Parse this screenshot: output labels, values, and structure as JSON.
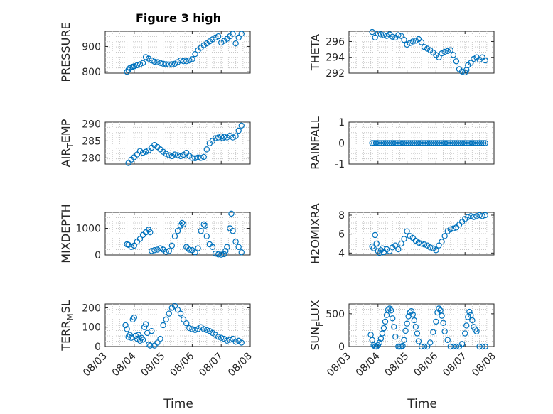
{
  "figure": {
    "title": "Figure 3 high",
    "marker_color": "#0072bd"
  },
  "chart_data": [
    {
      "type": "scatter",
      "ylabel": "PRESSURE",
      "ylim": [
        795,
        960
      ],
      "yticks": [
        800,
        900
      ],
      "title": "Figure 3 high",
      "grid": true,
      "xlim": [
        0,
        5
      ],
      "x_tick_labels": [
        "08/03",
        "08/04",
        "08/05",
        "08/06",
        "08/07",
        "08/08"
      ],
      "x_tick_labels_shown": false,
      "series": [
        {
          "x": [
            0.75,
            0.8,
            0.85,
            0.9,
            0.95,
            1.0,
            1.1,
            1.2,
            1.3,
            1.4,
            1.5,
            1.6,
            1.7,
            1.8,
            1.9,
            2.0,
            2.1,
            2.2,
            2.3,
            2.4,
            2.5,
            2.6,
            2.7,
            2.8,
            2.9,
            3.0,
            3.1,
            3.2,
            3.3,
            3.4,
            3.5,
            3.6,
            3.7,
            3.8,
            3.9,
            4.0,
            4.1,
            4.2,
            4.3,
            4.4,
            4.5,
            4.6,
            4.7
          ],
          "y": [
            800,
            808,
            815,
            818,
            820,
            822,
            826,
            830,
            835,
            858,
            852,
            845,
            840,
            838,
            835,
            832,
            830,
            829,
            830,
            832,
            838,
            845,
            842,
            842,
            845,
            850,
            870,
            885,
            895,
            905,
            912,
            920,
            928,
            935,
            940,
            915,
            922,
            930,
            940,
            950,
            912,
            935,
            950
          ]
        }
      ]
    },
    {
      "type": "scatter",
      "ylabel": "THETA",
      "ylim": [
        292,
        297.3
      ],
      "yticks": [
        292,
        294,
        296
      ],
      "grid": true,
      "xlim": [
        0,
        5
      ],
      "x_tick_labels_shown": false,
      "series": [
        {
          "x": [
            0.8,
            0.9,
            1.0,
            1.1,
            1.2,
            1.3,
            1.4,
            1.5,
            1.6,
            1.7,
            1.8,
            1.9,
            2.0,
            2.1,
            2.2,
            2.3,
            2.4,
            2.5,
            2.6,
            2.7,
            2.8,
            2.9,
            3.0,
            3.1,
            3.2,
            3.3,
            3.4,
            3.5,
            3.6,
            3.7,
            3.8,
            3.9,
            4.0,
            4.05,
            4.1,
            4.2,
            4.3,
            4.4,
            4.5,
            4.6,
            4.7
          ],
          "y": [
            297.2,
            296.5,
            297.0,
            296.9,
            296.8,
            296.7,
            296.9,
            296.6,
            296.5,
            296.8,
            296.7,
            296.2,
            295.6,
            295.8,
            296.0,
            296.1,
            296.3,
            295.9,
            295.3,
            295.1,
            294.9,
            294.6,
            294.3,
            294.0,
            294.5,
            294.7,
            294.8,
            294.9,
            294.3,
            293.5,
            292.5,
            292.2,
            292.1,
            292.4,
            293.0,
            293.3,
            293.8,
            294.0,
            293.7,
            294.0,
            293.6
          ]
        }
      ]
    },
    {
      "type": "scatter",
      "ylabel": "AIR_TEMP",
      "ylim": [
        278.2,
        290.5
      ],
      "yticks": [
        280,
        285,
        290
      ],
      "grid": true,
      "xlim": [
        0,
        5
      ],
      "x_tick_labels_shown": false,
      "series": [
        {
          "x": [
            0.8,
            0.9,
            1.0,
            1.1,
            1.2,
            1.3,
            1.4,
            1.5,
            1.6,
            1.7,
            1.8,
            1.9,
            2.0,
            2.1,
            2.2,
            2.3,
            2.4,
            2.5,
            2.6,
            2.7,
            2.8,
            2.9,
            3.0,
            3.1,
            3.2,
            3.3,
            3.4,
            3.5,
            3.6,
            3.7,
            3.8,
            3.9,
            4.0,
            4.05,
            4.1,
            4.2,
            4.3,
            4.4,
            4.5,
            4.6,
            4.7
          ],
          "y": [
            278.5,
            279.5,
            280.2,
            281.0,
            282.0,
            281.5,
            281.8,
            282.2,
            283.0,
            283.8,
            283.2,
            282.5,
            281.8,
            281.2,
            280.8,
            280.5,
            281.0,
            280.8,
            280.5,
            280.9,
            281.5,
            280.6,
            280.0,
            279.9,
            280.1,
            280.0,
            280.3,
            282.5,
            284.3,
            285.0,
            285.8,
            286.0,
            286.3,
            285.8,
            286.2,
            286.0,
            286.5,
            286.0,
            286.4,
            288.0,
            289.5
          ]
        }
      ]
    },
    {
      "type": "scatter",
      "ylabel": "RAINFALL",
      "ylim": [
        -1,
        1
      ],
      "yticks": [
        -1,
        0,
        1
      ],
      "grid": true,
      "xlim": [
        0,
        5
      ],
      "x_tick_labels_shown": false,
      "series": [
        {
          "x_range": [
            0.8,
            4.7
          ],
          "y_constant": 0,
          "n": 60
        }
      ]
    },
    {
      "type": "scatter",
      "ylabel": "MIXDEPTH",
      "ylim": [
        0,
        1600
      ],
      "yticks": [
        0,
        1000
      ],
      "grid": true,
      "xlim": [
        0,
        5
      ],
      "x_tick_labels_shown": false,
      "series": [
        {
          "x": [
            0.75,
            0.8,
            0.9,
            1.0,
            1.1,
            1.2,
            1.3,
            1.4,
            1.5,
            1.55,
            1.6,
            1.7,
            1.8,
            1.9,
            2.0,
            2.1,
            2.2,
            2.3,
            2.4,
            2.5,
            2.6,
            2.65,
            2.7,
            2.8,
            2.85,
            2.9,
            3.0,
            3.1,
            3.2,
            3.3,
            3.4,
            3.45,
            3.5,
            3.6,
            3.7,
            3.8,
            3.9,
            4.0,
            4.1,
            4.15,
            4.2,
            4.3,
            4.35,
            4.4,
            4.5,
            4.6,
            4.7
          ],
          "y": [
            400,
            380,
            300,
            350,
            500,
            600,
            750,
            850,
            950,
            850,
            150,
            180,
            200,
            250,
            200,
            120,
            150,
            350,
            700,
            900,
            1100,
            1200,
            1150,
            300,
            250,
            200,
            180,
            100,
            250,
            900,
            1150,
            1100,
            700,
            400,
            300,
            50,
            20,
            10,
            30,
            150,
            300,
            1000,
            1550,
            900,
            500,
            300,
            100
          ]
        }
      ]
    },
    {
      "type": "scatter",
      "ylabel": "H2OMIXRA",
      "ylim": [
        3.8,
        8.3
      ],
      "yticks": [
        4,
        6,
        8
      ],
      "grid": true,
      "xlim": [
        0,
        5
      ],
      "x_tick_labels_shown": false,
      "series": [
        {
          "x": [
            0.8,
            0.85,
            0.9,
            0.95,
            1.0,
            1.05,
            1.1,
            1.15,
            1.2,
            1.3,
            1.4,
            1.5,
            1.6,
            1.7,
            1.8,
            1.9,
            2.0,
            2.1,
            2.2,
            2.3,
            2.4,
            2.5,
            2.6,
            2.7,
            2.8,
            2.9,
            3.0,
            3.1,
            3.2,
            3.3,
            3.4,
            3.5,
            3.6,
            3.7,
            3.8,
            3.9,
            4.0,
            4.1,
            4.2,
            4.3,
            4.4,
            4.5,
            4.6,
            4.7
          ],
          "y": [
            4.7,
            4.5,
            5.9,
            5.0,
            4.2,
            4.0,
            4.3,
            4.5,
            4.1,
            4.4,
            4.2,
            4.6,
            4.8,
            4.4,
            5.0,
            5.5,
            6.3,
            5.8,
            5.6,
            5.3,
            5.1,
            5.0,
            4.9,
            4.8,
            4.6,
            4.5,
            4.3,
            4.8,
            5.2,
            5.8,
            6.3,
            6.5,
            6.6,
            6.7,
            7.0,
            7.3,
            7.6,
            7.8,
            7.9,
            7.8,
            7.9,
            8.0,
            7.9,
            8.0
          ]
        }
      ]
    },
    {
      "type": "scatter",
      "ylabel": "TERR_MSL",
      "ylim": [
        0,
        220
      ],
      "yticks": [
        0,
        100,
        200
      ],
      "grid": true,
      "xlim": [
        0,
        5
      ],
      "x_tick_labels_shown": true,
      "series": [
        {
          "x": [
            0.7,
            0.75,
            0.8,
            0.85,
            0.9,
            0.95,
            1.0,
            1.05,
            1.1,
            1.15,
            1.2,
            1.25,
            1.3,
            1.35,
            1.4,
            1.45,
            1.5,
            1.55,
            1.6,
            1.7,
            1.8,
            1.9,
            2.0,
            2.1,
            2.2,
            2.3,
            2.4,
            2.5,
            2.6,
            2.7,
            2.8,
            2.9,
            3.0,
            3.1,
            3.2,
            3.3,
            3.4,
            3.5,
            3.6,
            3.7,
            3.8,
            3.9,
            4.0,
            4.1,
            4.2,
            4.3,
            4.4,
            4.5,
            4.6,
            4.7
          ],
          "y": [
            110,
            90,
            50,
            60,
            45,
            140,
            150,
            55,
            40,
            60,
            30,
            45,
            35,
            100,
            115,
            70,
            10,
            5,
            80,
            5,
            20,
            40,
            110,
            140,
            170,
            200,
            210,
            190,
            170,
            140,
            120,
            95,
            90,
            85,
            90,
            100,
            90,
            85,
            80,
            70,
            60,
            50,
            45,
            40,
            30,
            35,
            40,
            25,
            30,
            20
          ]
        }
      ]
    },
    {
      "type": "scatter",
      "ylabel": "SUN_FLUX",
      "ylim": [
        0,
        650
      ],
      "yticks": [
        0,
        500
      ],
      "grid": true,
      "xlim": [
        0,
        5
      ],
      "x_tick_labels_shown": true,
      "series": [
        {
          "x": [
            0.75,
            0.8,
            0.85,
            0.9,
            0.95,
            1.0,
            1.05,
            1.1,
            1.15,
            1.2,
            1.25,
            1.3,
            1.35,
            1.4,
            1.45,
            1.5,
            1.55,
            1.6,
            1.7,
            1.75,
            1.8,
            1.85,
            1.9,
            1.95,
            2.0,
            2.05,
            2.1,
            2.15,
            2.2,
            2.25,
            2.3,
            2.35,
            2.4,
            2.5,
            2.6,
            2.7,
            2.8,
            2.9,
            3.0,
            3.05,
            3.1,
            3.15,
            3.2,
            3.25,
            3.3,
            3.4,
            3.5,
            3.6,
            3.7,
            3.8,
            3.9,
            4.0,
            4.05,
            4.1,
            4.15,
            4.2,
            4.25,
            4.3,
            4.35,
            4.4,
            4.5,
            4.6,
            4.7
          ],
          "y": [
            180,
            100,
            20,
            0,
            0,
            20,
            60,
            120,
            200,
            280,
            380,
            480,
            560,
            580,
            550,
            430,
            300,
            150,
            0,
            0,
            0,
            10,
            100,
            240,
            350,
            460,
            520,
            540,
            490,
            400,
            300,
            200,
            80,
            0,
            0,
            0,
            60,
            220,
            380,
            520,
            580,
            550,
            470,
            360,
            230,
            100,
            0,
            0,
            0,
            0,
            40,
            200,
            320,
            450,
            530,
            480,
            400,
            300,
            260,
            230,
            0,
            0,
            0
          ]
        }
      ]
    }
  ]
}
